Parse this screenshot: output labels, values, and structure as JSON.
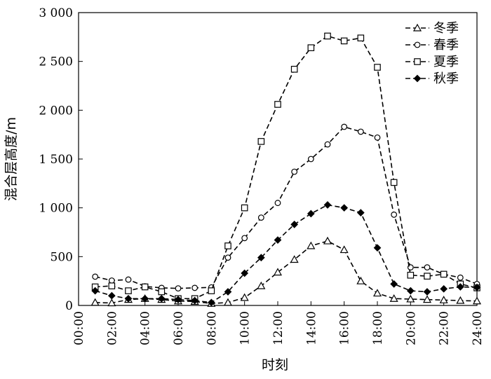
{
  "chart_data": {
    "type": "line",
    "xlabel": "时刻",
    "ylabel": "混合层高度/m",
    "xlim": [
      0,
      24
    ],
    "ylim": [
      0,
      3000
    ],
    "x_ticks": [
      0,
      2,
      4,
      6,
      8,
      10,
      12,
      14,
      16,
      18,
      20,
      22,
      24
    ],
    "x_tick_labels": [
      "00:00",
      "02:00",
      "04:00",
      "06:00",
      "08:00",
      "10:00",
      "12:00",
      "14:00",
      "16:00",
      "18:00",
      "20:00",
      "22:00",
      "24:00"
    ],
    "y_ticks": [
      0,
      500,
      1000,
      1500,
      2000,
      2500,
      3000
    ],
    "y_tick_labels": [
      "0",
      "500",
      "1 000",
      "1 500",
      "2 000",
      "2 500",
      "3 000"
    ],
    "grid": false,
    "legend_position": "top-right",
    "x": [
      1,
      2,
      3,
      4,
      5,
      6,
      7,
      8,
      9,
      10,
      11,
      12,
      13,
      14,
      15,
      16,
      17,
      18,
      19,
      20,
      21,
      22,
      23,
      24
    ],
    "series": [
      {
        "name": "冬季",
        "marker": "triangle",
        "values": [
          30,
          25,
          60,
          70,
          60,
          45,
          40,
          20,
          30,
          80,
          200,
          340,
          470,
          610,
          660,
          570,
          250,
          125,
          70,
          65,
          60,
          55,
          50,
          45
        ]
      },
      {
        "name": "春季",
        "marker": "circle",
        "values": [
          295,
          255,
          265,
          195,
          180,
          175,
          180,
          185,
          490,
          690,
          900,
          1050,
          1370,
          1500,
          1650,
          1830,
          1780,
          1720,
          930,
          390,
          390,
          320,
          285,
          220
        ]
      },
      {
        "name": "夏季",
        "marker": "square",
        "values": [
          190,
          200,
          150,
          190,
          140,
          70,
          70,
          150,
          610,
          1000,
          1680,
          2060,
          2420,
          2640,
          2760,
          2710,
          2740,
          2440,
          1260,
          310,
          300,
          320,
          220,
          180
        ]
      },
      {
        "name": "秋季",
        "marker": "diamond",
        "values": [
          150,
          100,
          70,
          70,
          70,
          60,
          50,
          30,
          140,
          330,
          490,
          670,
          830,
          940,
          1030,
          1000,
          950,
          590,
          220,
          150,
          140,
          170,
          190,
          185
        ]
      }
    ]
  }
}
